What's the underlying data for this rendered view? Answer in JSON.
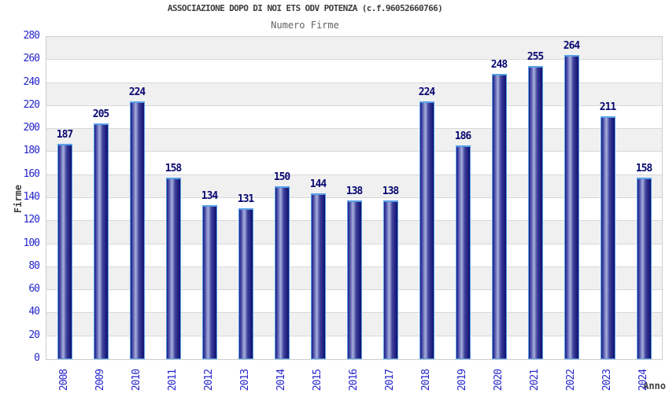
{
  "chart_data": {
    "type": "bar",
    "title": "ASSOCIAZIONE DOPO DI NOI ETS ODV POTENZA (c.f.96052660766)",
    "subtitle": "Numero Firme",
    "xlabel": "Anno",
    "ylabel": "Firme",
    "categories": [
      "2008",
      "2009",
      "2010",
      "2011",
      "2012",
      "2013",
      "2014",
      "2015",
      "2016",
      "2017",
      "2018",
      "2019",
      "2020",
      "2021",
      "2022",
      "2023",
      "2024"
    ],
    "values": [
      187,
      205,
      224,
      158,
      134,
      131,
      150,
      144,
      138,
      138,
      224,
      186,
      248,
      255,
      264,
      211,
      158
    ],
    "ylim": [
      0,
      280
    ],
    "ytick_step": 20,
    "grid": "horizontal-bands",
    "legend": "none",
    "colors": {
      "bar_edge_dark": "#1c1c85",
      "bar_mid_dark": "#3c3f9b",
      "bar_center_light": "#aab0dc",
      "bar_right_dark": "#10106e",
      "bar_border": "#57a0e8",
      "tick_label": "#2525cc",
      "value_label": "#070770",
      "band_gray": "#f0f0f0",
      "band_white": "#ffffff",
      "gridline": "#d8d8d8",
      "plot_border": "#cccccc",
      "title_color": "#3c3c3c",
      "subtitle_color": "#646464",
      "axis_title_color": "#404040"
    }
  }
}
